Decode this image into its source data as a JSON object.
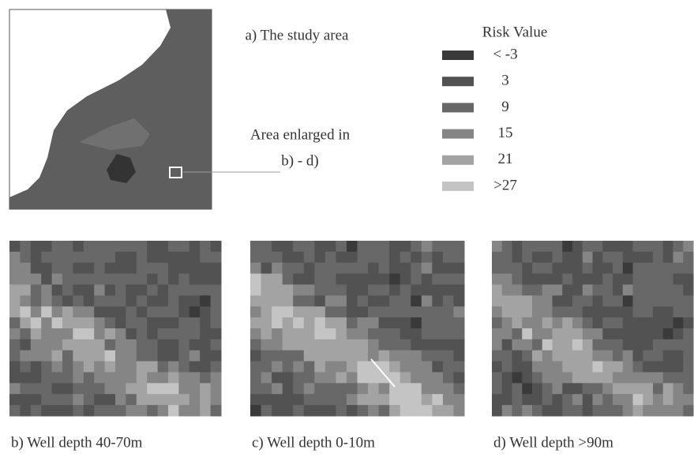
{
  "panel_a": {
    "caption": "a) The study area",
    "note_lines": [
      "Area enlarged in",
      "b) - d)"
    ]
  },
  "legend": {
    "title": "Risk Value",
    "items": [
      {
        "label": "< -3",
        "color": "#3a3a3a"
      },
      {
        "label": "3",
        "color": "#525252"
      },
      {
        "label": "9",
        "color": "#686868"
      },
      {
        "label": "15",
        "color": "#858585"
      },
      {
        "label": "21",
        "color": "#a3a3a3"
      },
      {
        "label": ">27",
        "color": "#c4c4c4"
      }
    ]
  },
  "panels": [
    {
      "caption": "b) Well depth 40-70m"
    },
    {
      "caption": "c) Well depth 0-10m"
    },
    {
      "caption": "d) Well depth >90m"
    }
  ]
}
